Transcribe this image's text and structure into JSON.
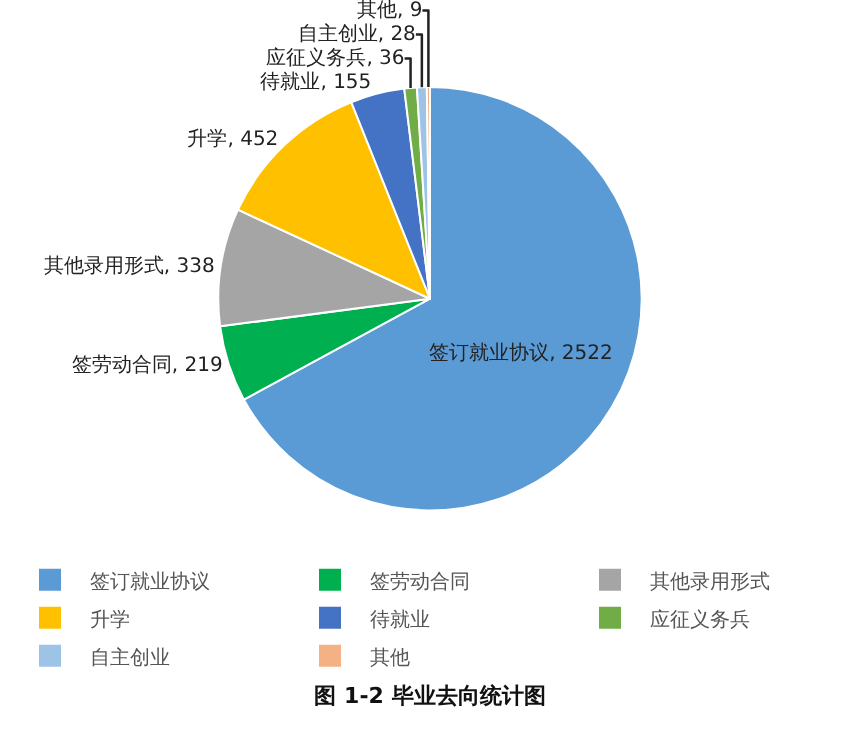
{
  "chart_data": {
    "type": "pie",
    "title": "图 1-2 毕业去向统计图",
    "categories": [
      "签订就业协议",
      "签劳动合同",
      "其他录用形式",
      "升学",
      "待就业",
      "应征义务兵",
      "自主创业",
      "其他"
    ],
    "values": [
      2522,
      219,
      338,
      452,
      155,
      36,
      28,
      9
    ],
    "colors": [
      "#5b9bd5",
      "#00b050",
      "#a5a5a5",
      "#ffc000",
      "#4472c4",
      "#70ad47",
      "#9dc3e6",
      "#f4b183"
    ],
    "value_labels": [
      "签订就业协议, 2522",
      "签劳动合同, 219",
      "其他录用形式, 338",
      "升学, 452",
      "待就业, 155",
      "应征义务兵, 36",
      "自主创业, 28",
      "其他, 9"
    ],
    "legend": "bottom"
  }
}
